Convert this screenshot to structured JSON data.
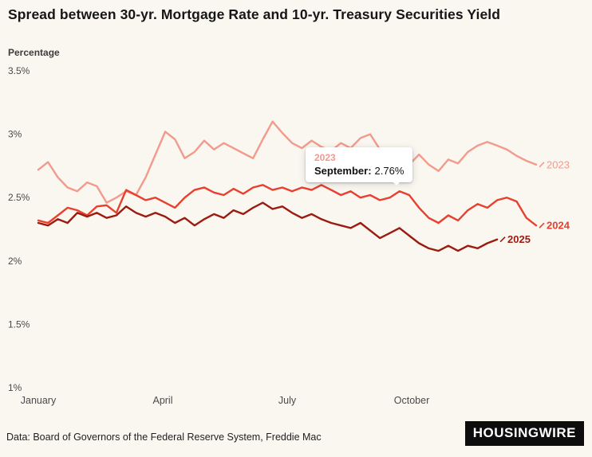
{
  "title": "Spread between 30-yr. Mortgage Rate and 10-yr. Treasury Securities Yield",
  "y_axis_title": "Percentage",
  "tooltip": {
    "series": "2023",
    "label": "September:",
    "value": "2.76%"
  },
  "footer": {
    "source": "Data: Board of Governors of the Federal Reserve System, Freddie Mac",
    "logo": "HOUSINGWIRE"
  },
  "colors": {
    "background": "#faf6f0",
    "series_2023": "#f29b8d",
    "series_2024": "#e8402f",
    "series_2025": "#9b1b10",
    "axis_text": "#4a4a4a"
  },
  "chart_data": {
    "type": "line",
    "title": "Spread between 30-yr. Mortgage Rate and 10-yr. Treasury Securities Yield",
    "ylabel": "Percentage",
    "x_unit": "weeks",
    "ylim": [
      1,
      3.5
    ],
    "grid": false,
    "legend_position": "line-end-labels",
    "y_ticks": [
      {
        "value": 1,
        "label": "1%"
      },
      {
        "value": 1.5,
        "label": "1.5%"
      },
      {
        "value": 2,
        "label": "2%"
      },
      {
        "value": 2.5,
        "label": "2.5%"
      },
      {
        "value": 3,
        "label": "3%"
      },
      {
        "value": 3.5,
        "label": "3.5%"
      }
    ],
    "x_ticks": [
      {
        "month": 0,
        "label": "January"
      },
      {
        "month": 3,
        "label": "April"
      },
      {
        "month": 6,
        "label": "July"
      },
      {
        "month": 9,
        "label": "October"
      }
    ],
    "annotation": {
      "series": "2023",
      "point_label": "September",
      "point_value": 2.76
    },
    "series": [
      {
        "name": "2023",
        "color": "#f29b8d",
        "bold_label": false,
        "values": [
          2.72,
          2.78,
          2.66,
          2.58,
          2.55,
          2.62,
          2.59,
          2.46,
          2.5,
          2.55,
          2.52,
          2.66,
          2.84,
          3.02,
          2.96,
          2.81,
          2.86,
          2.95,
          2.88,
          2.93,
          2.89,
          2.85,
          2.81,
          2.96,
          3.1,
          3.01,
          2.93,
          2.89,
          2.95,
          2.9,
          2.87,
          2.93,
          2.89,
          2.97,
          3.0,
          2.88,
          2.82,
          2.79,
          2.76,
          2.84,
          2.76,
          2.71,
          2.8,
          2.77,
          2.86,
          2.91,
          2.94,
          2.91,
          2.88,
          2.83,
          2.79,
          2.76
        ]
      },
      {
        "name": "2024",
        "color": "#e8402f",
        "bold_label": true,
        "values": [
          2.32,
          2.3,
          2.36,
          2.42,
          2.4,
          2.36,
          2.43,
          2.44,
          2.38,
          2.56,
          2.52,
          2.48,
          2.5,
          2.46,
          2.42,
          2.5,
          2.56,
          2.58,
          2.54,
          2.52,
          2.57,
          2.53,
          2.58,
          2.6,
          2.56,
          2.58,
          2.55,
          2.58,
          2.56,
          2.6,
          2.56,
          2.52,
          2.55,
          2.5,
          2.52,
          2.48,
          2.5,
          2.55,
          2.52,
          2.42,
          2.34,
          2.3,
          2.36,
          2.32,
          2.4,
          2.45,
          2.42,
          2.48,
          2.5,
          2.47,
          2.34,
          2.28
        ]
      },
      {
        "name": "2025",
        "color": "#9b1b10",
        "bold_label": true,
        "values": [
          2.3,
          2.28,
          2.33,
          2.3,
          2.38,
          2.35,
          2.38,
          2.34,
          2.36,
          2.43,
          2.38,
          2.35,
          2.38,
          2.35,
          2.3,
          2.34,
          2.28,
          2.33,
          2.37,
          2.34,
          2.4,
          2.37,
          2.42,
          2.46,
          2.41,
          2.43,
          2.38,
          2.34,
          2.37,
          2.33,
          2.3,
          2.28,
          2.26,
          2.3,
          2.24,
          2.18,
          2.22,
          2.26,
          2.2,
          2.14,
          2.1,
          2.08,
          2.12,
          2.08,
          2.12,
          2.1,
          2.14,
          2.17
        ]
      }
    ]
  }
}
